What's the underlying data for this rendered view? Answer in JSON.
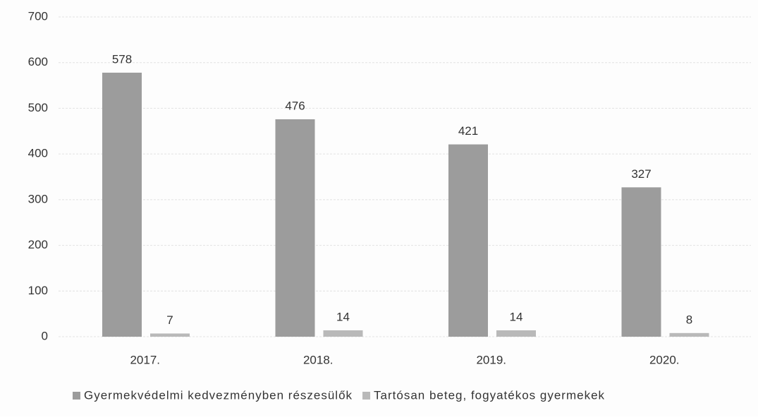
{
  "chart_data": {
    "type": "bar",
    "categories": [
      "2017.",
      "2018.",
      "2019.",
      "2020."
    ],
    "series": [
      {
        "name": "Gyermekvédelmi kedvezményben részesülők",
        "color": "#9c9c9c",
        "values": [
          578,
          476,
          421,
          327
        ]
      },
      {
        "name": "Tartósan beteg, fogyatékos gyermekek",
        "color": "#b9b9b9",
        "values": [
          7,
          14,
          14,
          8
        ]
      }
    ],
    "ylim": [
      0,
      700
    ],
    "yticks": [
      0,
      100,
      200,
      300,
      400,
      500,
      600,
      700
    ],
    "grid": true
  }
}
